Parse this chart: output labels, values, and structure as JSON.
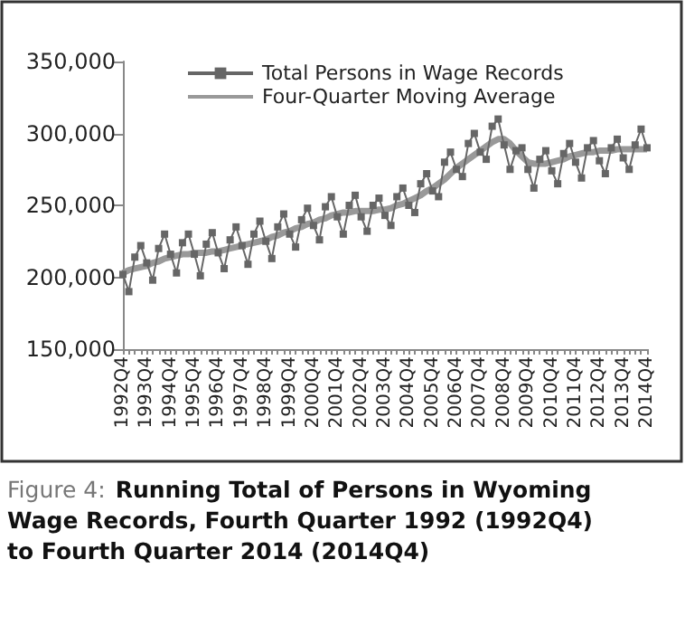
{
  "chart_data": {
    "type": "line",
    "title": "Figure 4: Running Total of Persons in Wyoming Wage Records, Fourth Quarter 1992 (1992Q4) to Fourth Quarter 2014 (2014Q4)",
    "categories": [
      "1992Q4",
      null,
      null,
      null,
      "1993Q4",
      null,
      null,
      null,
      "1994Q4",
      null,
      null,
      null,
      "1995Q4",
      null,
      null,
      null,
      "1996Q4",
      null,
      null,
      null,
      "1997Q4",
      null,
      null,
      null,
      "1998Q4",
      null,
      null,
      null,
      "1999Q4",
      null,
      null,
      null,
      "2000Q4",
      null,
      null,
      null,
      "2001Q4",
      null,
      null,
      null,
      "2002Q4",
      null,
      null,
      null,
      "2003Q4",
      null,
      null,
      null,
      "2004Q4",
      null,
      null,
      null,
      "2005Q4",
      null,
      null,
      null,
      "2006Q4",
      null,
      null,
      null,
      "2007Q4",
      null,
      null,
      null,
      "2008Q4",
      null,
      null,
      null,
      "2009Q4",
      null,
      null,
      null,
      "2010Q4",
      null,
      null,
      null,
      "2011Q4",
      null,
      null,
      null,
      "2012Q4",
      null,
      null,
      null,
      "2013Q4",
      null,
      null,
      null,
      "2014Q4"
    ],
    "series": [
      {
        "name": "Total Persons in Wage Records",
        "color": "#666666",
        "marker": "square",
        "line_style": "solid",
        "values": [
          202000,
          190000,
          214000,
          222000,
          210000,
          198000,
          220000,
          230000,
          216000,
          203000,
          224000,
          230000,
          216000,
          201000,
          223000,
          231000,
          217000,
          206000,
          226000,
          235000,
          222000,
          209000,
          230000,
          239000,
          225000,
          213000,
          235000,
          244000,
          230000,
          221000,
          240000,
          248000,
          236000,
          226000,
          249000,
          256000,
          242000,
          230000,
          250000,
          257000,
          242000,
          232000,
          250000,
          255000,
          243000,
          236000,
          256000,
          262000,
          250000,
          245000,
          265000,
          272000,
          260000,
          256000,
          280000,
          287000,
          275000,
          270000,
          293000,
          300000,
          287000,
          282000,
          305000,
          310000,
          292000,
          275000,
          288000,
          290000,
          275000,
          262000,
          282000,
          288000,
          274000,
          265000,
          286000,
          293000,
          280000,
          269000,
          290000,
          295000,
          281000,
          272000,
          290000,
          296000,
          283000,
          275000,
          292000,
          303000,
          290000
        ]
      },
      {
        "name": "Four-Quarter Moving Average",
        "color": "#999999",
        "marker": "none",
        "line_style": "solid",
        "values": [
          203000,
          205000,
          206000,
          207000,
          208000,
          210000,
          211000,
          213000,
          214000,
          215000,
          216000,
          216000,
          217000,
          217000,
          217000,
          218000,
          218000,
          219000,
          220000,
          221000,
          222000,
          223000,
          224000,
          225000,
          226000,
          228000,
          229000,
          231000,
          232000,
          234000,
          235000,
          237000,
          238000,
          240000,
          241000,
          243000,
          244000,
          245000,
          245000,
          246000,
          246000,
          246000,
          246000,
          247000,
          247000,
          248000,
          250000,
          251000,
          253000,
          255000,
          257000,
          260000,
          262000,
          265000,
          268000,
          272000,
          276000,
          279000,
          282000,
          285000,
          288000,
          291000,
          294000,
          296000,
          296000,
          293000,
          288000,
          284000,
          280000,
          279000,
          279000,
          279000,
          280000,
          281000,
          282000,
          284000,
          285000,
          286000,
          287000,
          287000,
          288000,
          288000,
          288000,
          289000,
          289000,
          289000,
          289000,
          289000,
          289000
        ]
      }
    ],
    "ylim": [
      150000,
      350000
    ],
    "yticks": [
      {
        "value": 150000,
        "label": "150,000"
      },
      {
        "value": 200000,
        "label": "200,000"
      },
      {
        "value": 250000,
        "label": "250,000"
      },
      {
        "value": 300000,
        "label": "300,000"
      },
      {
        "value": 350000,
        "label": "350,000"
      }
    ],
    "grid": false,
    "legend": "top left"
  }
}
